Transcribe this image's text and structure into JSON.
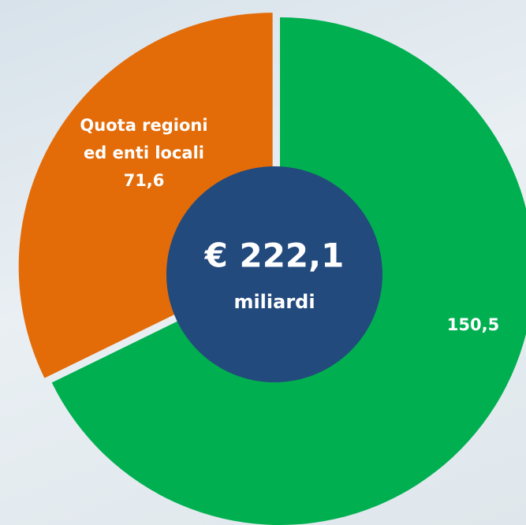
{
  "chart_data": {
    "type": "pie",
    "categories": [
      null,
      "Quota regioni ed enti locali"
    ],
    "values": [
      150.5,
      71.6
    ],
    "value_labels": [
      "150,5",
      "71,6"
    ],
    "colors": [
      "#00b050",
      "#e36c09"
    ],
    "center_label": "€ 222,1",
    "center_sublabel": "miliardi"
  }
}
